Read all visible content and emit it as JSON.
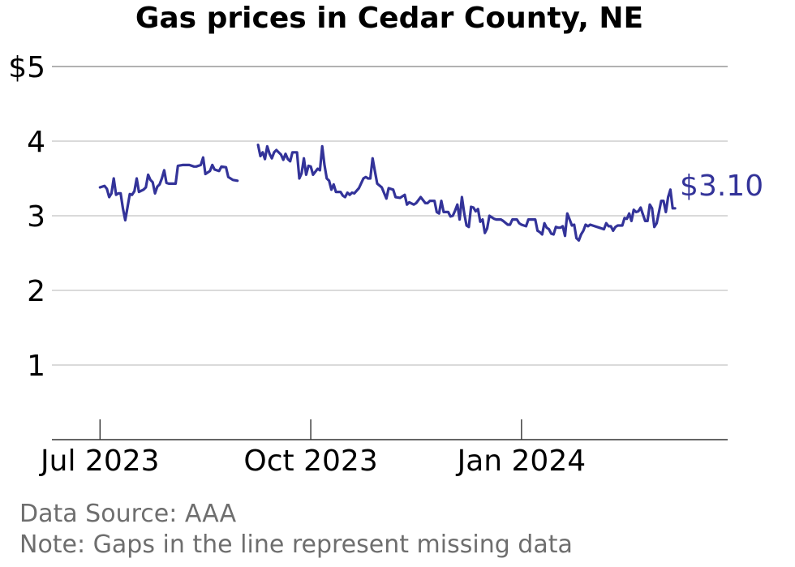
{
  "chart_data": {
    "type": "line",
    "title": "Gas prices in Cedar County, NE",
    "xlabel": "",
    "ylabel": "",
    "x_range": [
      "2023-06-10",
      "2024-03-31"
    ],
    "ylim": [
      0,
      5
    ],
    "y_ticks": [
      {
        "value": 5,
        "label": "$5"
      },
      {
        "value": 4,
        "label": "4"
      },
      {
        "value": 3,
        "label": "3"
      },
      {
        "value": 2,
        "label": "2"
      },
      {
        "value": 1,
        "label": "1"
      }
    ],
    "x_ticks": [
      {
        "date": "2023-07-01",
        "label": "Jul 2023"
      },
      {
        "date": "2023-10-01",
        "label": "Oct 2023"
      },
      {
        "date": "2024-01-01",
        "label": "Jan 2024"
      }
    ],
    "grid": "horizontal",
    "line_color": "#333399",
    "end_label": "$3.10",
    "series": [
      {
        "segments": [
          [
            [
              "2023-07-01",
              3.38
            ],
            [
              "2023-07-03",
              3.4
            ],
            [
              "2023-07-04",
              3.36
            ],
            [
              "2023-07-05",
              3.25
            ],
            [
              "2023-07-06",
              3.3
            ],
            [
              "2023-07-07",
              3.5
            ],
            [
              "2023-07-08",
              3.28
            ],
            [
              "2023-07-09",
              3.3
            ],
            [
              "2023-07-10",
              3.3
            ],
            [
              "2023-07-11",
              3.1
            ],
            [
              "2023-07-12",
              2.94
            ],
            [
              "2023-07-14",
              3.29
            ],
            [
              "2023-07-15",
              3.28
            ],
            [
              "2023-07-16",
              3.33
            ],
            [
              "2023-07-17",
              3.5
            ],
            [
              "2023-07-18",
              3.32
            ],
            [
              "2023-07-20",
              3.35
            ],
            [
              "2023-07-21",
              3.38
            ],
            [
              "2023-07-22",
              3.55
            ],
            [
              "2023-07-23",
              3.48
            ],
            [
              "2023-07-24",
              3.45
            ],
            [
              "2023-07-25",
              3.3
            ],
            [
              "2023-07-26",
              3.39
            ],
            [
              "2023-07-27",
              3.42
            ],
            [
              "2023-07-28",
              3.5
            ],
            [
              "2023-07-29",
              3.61
            ],
            [
              "2023-07-30",
              3.44
            ],
            [
              "2023-07-31",
              3.43
            ],
            [
              "2023-08-03",
              3.43
            ],
            [
              "2023-08-04",
              3.67
            ],
            [
              "2023-08-06",
              3.68
            ],
            [
              "2023-08-09",
              3.68
            ],
            [
              "2023-08-11",
              3.66
            ],
            [
              "2023-08-12",
              3.66
            ],
            [
              "2023-08-14",
              3.68
            ],
            [
              "2023-08-15",
              3.78
            ],
            [
              "2023-08-16",
              3.56
            ],
            [
              "2023-08-18",
              3.6
            ],
            [
              "2023-08-19",
              3.68
            ],
            [
              "2023-08-20",
              3.62
            ],
            [
              "2023-08-22",
              3.6
            ],
            [
              "2023-08-23",
              3.66
            ],
            [
              "2023-08-25",
              3.65
            ],
            [
              "2023-08-26",
              3.52
            ],
            [
              "2023-08-28",
              3.48
            ],
            [
              "2023-08-30",
              3.47
            ]
          ],
          [
            [
              "2023-09-08",
              3.95
            ],
            [
              "2023-09-09",
              3.8
            ],
            [
              "2023-09-10",
              3.85
            ],
            [
              "2023-09-11",
              3.76
            ],
            [
              "2023-09-12",
              3.93
            ],
            [
              "2023-09-13",
              3.83
            ],
            [
              "2023-09-14",
              3.77
            ],
            [
              "2023-09-15",
              3.85
            ],
            [
              "2023-09-16",
              3.88
            ],
            [
              "2023-09-18",
              3.82
            ],
            [
              "2023-09-19",
              3.75
            ],
            [
              "2023-09-20",
              3.83
            ],
            [
              "2023-09-21",
              3.76
            ],
            [
              "2023-09-22",
              3.73
            ],
            [
              "2023-09-23",
              3.85
            ],
            [
              "2023-09-25",
              3.85
            ],
            [
              "2023-09-26",
              3.5
            ],
            [
              "2023-09-27",
              3.57
            ],
            [
              "2023-09-28",
              3.77
            ],
            [
              "2023-09-29",
              3.55
            ],
            [
              "2023-09-30",
              3.67
            ],
            [
              "2023-10-01",
              3.66
            ],
            [
              "2023-10-02",
              3.55
            ],
            [
              "2023-10-04",
              3.63
            ],
            [
              "2023-10-05",
              3.61
            ],
            [
              "2023-10-06",
              3.93
            ],
            [
              "2023-10-07",
              3.68
            ],
            [
              "2023-10-08",
              3.5
            ],
            [
              "2023-10-09",
              3.47
            ],
            [
              "2023-10-10",
              3.35
            ],
            [
              "2023-10-11",
              3.42
            ],
            [
              "2023-10-12",
              3.32
            ],
            [
              "2023-10-14",
              3.32
            ],
            [
              "2023-10-15",
              3.27
            ],
            [
              "2023-10-16",
              3.25
            ],
            [
              "2023-10-17",
              3.31
            ],
            [
              "2023-10-18",
              3.28
            ],
            [
              "2023-10-19",
              3.31
            ],
            [
              "2023-10-20",
              3.3
            ],
            [
              "2023-10-22",
              3.37
            ],
            [
              "2023-10-24",
              3.5
            ],
            [
              "2023-10-25",
              3.52
            ],
            [
              "2023-10-26",
              3.5
            ],
            [
              "2023-10-27",
              3.5
            ],
            [
              "2023-10-28",
              3.77
            ],
            [
              "2023-10-29",
              3.6
            ],
            [
              "2023-10-30",
              3.43
            ],
            [
              "2023-11-01",
              3.38
            ],
            [
              "2023-11-03",
              3.23
            ],
            [
              "2023-11-04",
              3.37
            ],
            [
              "2023-11-06",
              3.35
            ],
            [
              "2023-11-07",
              3.25
            ],
            [
              "2023-11-09",
              3.24
            ],
            [
              "2023-11-11",
              3.28
            ],
            [
              "2023-11-12",
              3.15
            ],
            [
              "2023-11-13",
              3.18
            ],
            [
              "2023-11-15",
              3.15
            ],
            [
              "2023-11-16",
              3.17
            ],
            [
              "2023-11-18",
              3.25
            ],
            [
              "2023-11-20",
              3.17
            ],
            [
              "2023-11-21",
              3.17
            ],
            [
              "2023-11-22",
              3.2
            ],
            [
              "2023-11-24",
              3.2
            ],
            [
              "2023-11-25",
              3.05
            ],
            [
              "2023-11-26",
              3.03
            ],
            [
              "2023-11-27",
              3.2
            ],
            [
              "2023-11-28",
              3.05
            ],
            [
              "2023-11-30",
              3.05
            ],
            [
              "2023-12-01",
              2.99
            ],
            [
              "2023-12-02",
              3.0
            ],
            [
              "2023-12-03",
              3.07
            ],
            [
              "2023-12-04",
              3.15
            ],
            [
              "2023-12-05",
              2.95
            ],
            [
              "2023-12-06",
              3.25
            ],
            [
              "2023-12-07",
              3.03
            ],
            [
              "2023-12-08",
              2.87
            ],
            [
              "2023-12-09",
              2.85
            ],
            [
              "2023-12-10",
              3.12
            ],
            [
              "2023-12-11",
              3.11
            ],
            [
              "2023-12-12",
              3.06
            ],
            [
              "2023-12-13",
              3.09
            ],
            [
              "2023-12-14",
              2.92
            ],
            [
              "2023-12-15",
              2.95
            ],
            [
              "2023-12-16",
              2.77
            ],
            [
              "2023-12-17",
              2.83
            ],
            [
              "2023-12-18",
              3.0
            ],
            [
              "2023-12-20",
              2.96
            ],
            [
              "2023-12-21",
              2.95
            ],
            [
              "2023-12-23",
              2.95
            ],
            [
              "2023-12-24",
              2.93
            ],
            [
              "2023-12-26",
              2.88
            ],
            [
              "2023-12-27",
              2.88
            ],
            [
              "2023-12-28",
              2.95
            ],
            [
              "2023-12-30",
              2.95
            ],
            [
              "2023-12-31",
              2.9
            ],
            [
              "2024-01-01",
              2.88
            ],
            [
              "2024-01-03",
              2.86
            ],
            [
              "2024-01-04",
              2.95
            ],
            [
              "2024-01-07",
              2.95
            ],
            [
              "2024-01-08",
              2.8
            ],
            [
              "2024-01-09",
              2.78
            ],
            [
              "2024-01-10",
              2.75
            ],
            [
              "2024-01-11",
              2.9
            ],
            [
              "2024-01-12",
              2.84
            ],
            [
              "2024-01-13",
              2.82
            ],
            [
              "2024-01-14",
              2.76
            ],
            [
              "2024-01-15",
              2.75
            ],
            [
              "2024-01-16",
              2.85
            ],
            [
              "2024-01-17",
              2.84
            ],
            [
              "2024-01-18",
              2.84
            ],
            [
              "2024-01-19",
              2.86
            ],
            [
              "2024-01-20",
              2.73
            ],
            [
              "2024-01-21",
              3.03
            ],
            [
              "2024-01-22",
              2.95
            ],
            [
              "2024-01-23",
              2.87
            ],
            [
              "2024-01-24",
              2.88
            ],
            [
              "2024-01-25",
              2.7
            ],
            [
              "2024-01-26",
              2.67
            ],
            [
              "2024-01-27",
              2.75
            ],
            [
              "2024-01-28",
              2.8
            ],
            [
              "2024-01-29",
              2.88
            ],
            [
              "2024-01-30",
              2.86
            ],
            [
              "2024-01-31",
              2.88
            ],
            [
              "2024-02-02",
              2.86
            ],
            [
              "2024-02-04",
              2.84
            ],
            [
              "2024-02-06",
              2.82
            ],
            [
              "2024-02-07",
              2.9
            ],
            [
              "2024-02-08",
              2.86
            ],
            [
              "2024-02-09",
              2.86
            ],
            [
              "2024-02-10",
              2.8
            ],
            [
              "2024-02-11",
              2.85
            ],
            [
              "2024-02-12",
              2.87
            ],
            [
              "2024-02-14",
              2.87
            ],
            [
              "2024-02-15",
              2.97
            ],
            [
              "2024-02-16",
              2.96
            ],
            [
              "2024-02-17",
              3.03
            ],
            [
              "2024-02-18",
              2.93
            ],
            [
              "2024-02-19",
              3.08
            ],
            [
              "2024-02-20",
              3.05
            ],
            [
              "2024-02-21",
              3.06
            ],
            [
              "2024-02-22",
              3.11
            ],
            [
              "2024-02-23",
              3.02
            ],
            [
              "2024-02-24",
              2.93
            ],
            [
              "2024-02-25",
              2.93
            ],
            [
              "2024-02-26",
              3.15
            ],
            [
              "2024-02-27",
              3.1
            ],
            [
              "2024-02-28",
              2.85
            ],
            [
              "2024-02-29",
              2.9
            ],
            [
              "2024-03-01",
              3.05
            ],
            [
              "2024-03-02",
              3.2
            ],
            [
              "2024-03-03",
              3.2
            ],
            [
              "2024-03-04",
              3.05
            ],
            [
              "2024-03-05",
              3.25
            ],
            [
              "2024-03-06",
              3.35
            ],
            [
              "2024-03-07",
              3.1
            ],
            [
              "2024-03-08",
              3.1
            ]
          ]
        ]
      }
    ]
  },
  "footer": {
    "source": "Data Source: AAA",
    "note": "Note: Gaps in the line represent missing data"
  }
}
